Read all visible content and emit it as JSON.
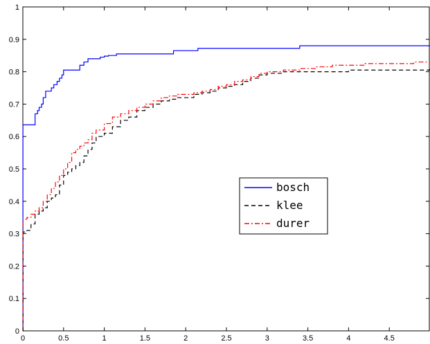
{
  "chart_data": {
    "type": "line",
    "title": "",
    "xlabel": "",
    "ylabel": "",
    "xlim": [
      0,
      5
    ],
    "ylim": [
      0,
      1
    ],
    "xticks": [
      0,
      0.5,
      1,
      1.5,
      2,
      2.5,
      3,
      3.5,
      4,
      4.5
    ],
    "xtick_labels": [
      "0",
      "0.5",
      "1",
      "1.5",
      "2",
      "2.5",
      "3",
      "3.5",
      "4",
      "4.5"
    ],
    "yticks": [
      0,
      0.1,
      0.2,
      0.3,
      0.4,
      0.5,
      0.6,
      0.7,
      0.8,
      0.9,
      1
    ],
    "ytick_labels": [
      "0",
      "0.1",
      "0.2",
      "0.3",
      "0.4",
      "0.5",
      "0.6",
      "0.7",
      "0.8",
      "0.9",
      "1"
    ],
    "grid": false,
    "legend_position": "center-right",
    "series": [
      {
        "name": "bosch",
        "color": "#0000ff",
        "dash": "solid",
        "x": [
          0,
          0.001,
          0.15,
          0.18,
          0.2,
          0.23,
          0.25,
          0.28,
          0.3,
          0.35,
          0.38,
          0.42,
          0.45,
          0.48,
          0.5,
          0.55,
          0.65,
          0.7,
          0.75,
          0.8,
          0.95,
          1.0,
          1.05,
          1.15,
          1.3,
          1.5,
          1.7,
          1.85,
          2.0,
          2.15,
          2.5,
          3.0,
          3.3,
          3.4,
          4.0,
          4.5,
          5.0
        ],
        "y": [
          0,
          0.636,
          0.67,
          0.68,
          0.69,
          0.7,
          0.72,
          0.74,
          0.74,
          0.75,
          0.76,
          0.77,
          0.78,
          0.79,
          0.805,
          0.805,
          0.805,
          0.82,
          0.83,
          0.84,
          0.845,
          0.848,
          0.85,
          0.855,
          0.855,
          0.855,
          0.855,
          0.865,
          0.865,
          0.872,
          0.872,
          0.872,
          0.872,
          0.88,
          0.88,
          0.88,
          0.88
        ]
      },
      {
        "name": "klee",
        "color": "#000000",
        "dash": "dashed",
        "x": [
          0,
          0.002,
          0.05,
          0.1,
          0.15,
          0.2,
          0.25,
          0.3,
          0.35,
          0.4,
          0.45,
          0.5,
          0.55,
          0.6,
          0.65,
          0.7,
          0.75,
          0.8,
          0.85,
          0.9,
          1.0,
          1.1,
          1.2,
          1.3,
          1.4,
          1.5,
          1.6,
          1.7,
          1.8,
          1.9,
          2.0,
          2.1,
          2.2,
          2.3,
          2.4,
          2.5,
          2.6,
          2.7,
          2.8,
          2.9,
          3.0,
          3.2,
          3.4,
          3.6,
          3.8,
          4.0,
          4.2,
          4.5,
          4.8,
          5.0
        ],
        "y": [
          0,
          0.305,
          0.31,
          0.33,
          0.36,
          0.37,
          0.38,
          0.4,
          0.41,
          0.42,
          0.45,
          0.48,
          0.49,
          0.5,
          0.51,
          0.52,
          0.54,
          0.56,
          0.58,
          0.6,
          0.61,
          0.63,
          0.65,
          0.66,
          0.68,
          0.69,
          0.7,
          0.71,
          0.715,
          0.72,
          0.72,
          0.73,
          0.735,
          0.74,
          0.75,
          0.755,
          0.76,
          0.77,
          0.78,
          0.79,
          0.795,
          0.8,
          0.8,
          0.8,
          0.8,
          0.805,
          0.805,
          0.805,
          0.805,
          0.808
        ]
      },
      {
        "name": "durer",
        "color": "#ff0000",
        "dash": "dashdot",
        "x": [
          0,
          0.002,
          0.05,
          0.1,
          0.15,
          0.2,
          0.25,
          0.3,
          0.35,
          0.4,
          0.45,
          0.5,
          0.55,
          0.6,
          0.65,
          0.7,
          0.75,
          0.8,
          0.85,
          0.9,
          1.0,
          1.1,
          1.2,
          1.3,
          1.4,
          1.5,
          1.6,
          1.7,
          1.8,
          1.9,
          2.0,
          2.1,
          2.2,
          2.3,
          2.4,
          2.5,
          2.6,
          2.7,
          2.8,
          2.9,
          3.0,
          3.2,
          3.4,
          3.6,
          3.8,
          4.0,
          4.2,
          4.5,
          4.8,
          5.0
        ],
        "y": [
          0,
          0.345,
          0.35,
          0.36,
          0.37,
          0.38,
          0.4,
          0.42,
          0.44,
          0.46,
          0.48,
          0.5,
          0.52,
          0.55,
          0.56,
          0.57,
          0.58,
          0.59,
          0.61,
          0.62,
          0.64,
          0.66,
          0.67,
          0.68,
          0.69,
          0.7,
          0.71,
          0.72,
          0.725,
          0.73,
          0.73,
          0.735,
          0.74,
          0.745,
          0.755,
          0.76,
          0.77,
          0.775,
          0.785,
          0.795,
          0.8,
          0.805,
          0.81,
          0.815,
          0.82,
          0.82,
          0.825,
          0.825,
          0.83,
          0.83
        ]
      }
    ]
  }
}
